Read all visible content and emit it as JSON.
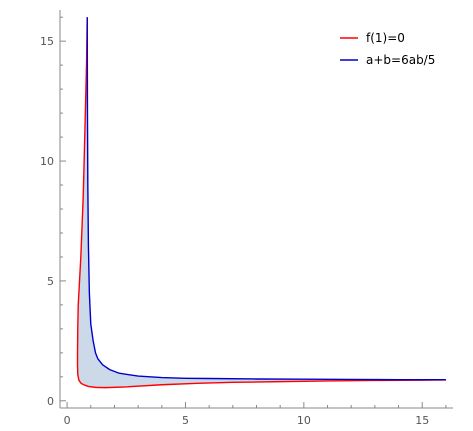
{
  "chart_data": {
    "type": "line",
    "title": "",
    "xlabel": "",
    "ylabel": "",
    "xlim": [
      -0.3,
      16.3
    ],
    "ylim": [
      -0.3,
      16.3
    ],
    "grid": false,
    "legend_position": "top-right",
    "x_ticks": [
      {
        "value": 0,
        "label": "0"
      },
      {
        "value": 5,
        "label": "5"
      },
      {
        "value": 10,
        "label": "10"
      },
      {
        "value": 15,
        "label": "15"
      }
    ],
    "y_ticks": [
      {
        "value": 0,
        "label": "0"
      },
      {
        "value": 5,
        "label": "5"
      },
      {
        "value": 10,
        "label": "10"
      },
      {
        "value": 15,
        "label": "15"
      }
    ],
    "fill_color": "#ccd9e8",
    "series": [
      {
        "name": "f(1)=0",
        "color": "#ff0000",
        "x": [
          0.85,
          0.82,
          0.77,
          0.72,
          0.68,
          0.62,
          0.58,
          0.47,
          0.45,
          0.44,
          0.44,
          0.45,
          0.5,
          0.6,
          0.75,
          0.9,
          1.2,
          1.6,
          2.5,
          4,
          5.5,
          7,
          9,
          11,
          13,
          15,
          16
        ],
        "y": [
          16,
          14,
          12,
          10,
          8.5,
          7,
          6,
          4,
          3,
          2,
          1.5,
          1.1,
          0.85,
          0.72,
          0.65,
          0.6,
          0.56,
          0.55,
          0.58,
          0.67,
          0.73,
          0.77,
          0.8,
          0.83,
          0.85,
          0.86,
          0.87
        ]
      },
      {
        "name": "a+b=6ab/5",
        "color": "#0000cc",
        "x": [
          0.85,
          0.86,
          0.875,
          0.9,
          0.94,
          1.0,
          1.1,
          1.2,
          1.3,
          1.5,
          1.8,
          2.2,
          3,
          4,
          5,
          6,
          8,
          10,
          12,
          14,
          16
        ],
        "y": [
          16,
          12,
          9,
          6.5,
          4.5,
          3.2,
          2.5,
          2.0,
          1.75,
          1.5,
          1.3,
          1.15,
          1.03,
          0.97,
          0.94,
          0.93,
          0.91,
          0.9,
          0.89,
          0.88,
          0.88
        ]
      }
    ]
  }
}
